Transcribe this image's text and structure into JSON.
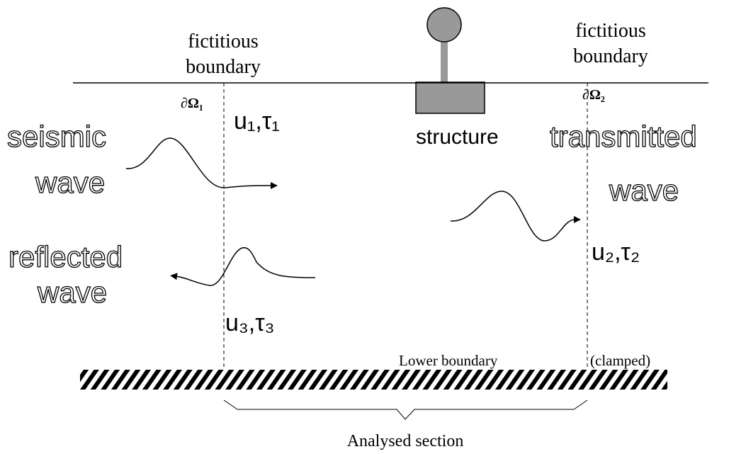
{
  "labels": {
    "left_boundary": [
      "fictitious",
      "boundary"
    ],
    "right_boundary": [
      "fictitious",
      "boundary"
    ],
    "omega1": "∂Ω₁",
    "omega2": "∂Ω₂",
    "u1": "u₁,τ₁",
    "u2": "u₂,τ₂",
    "u3": "u₃,τ₃",
    "structure": "structure",
    "seismic": [
      "seismic",
      "wave"
    ],
    "transmitted": [
      "transmitted",
      "wave"
    ],
    "reflected": [
      "reflected",
      "wave"
    ],
    "lower": "Lower boundary",
    "clamped": "(clamped)",
    "section": "Analysed section"
  }
}
